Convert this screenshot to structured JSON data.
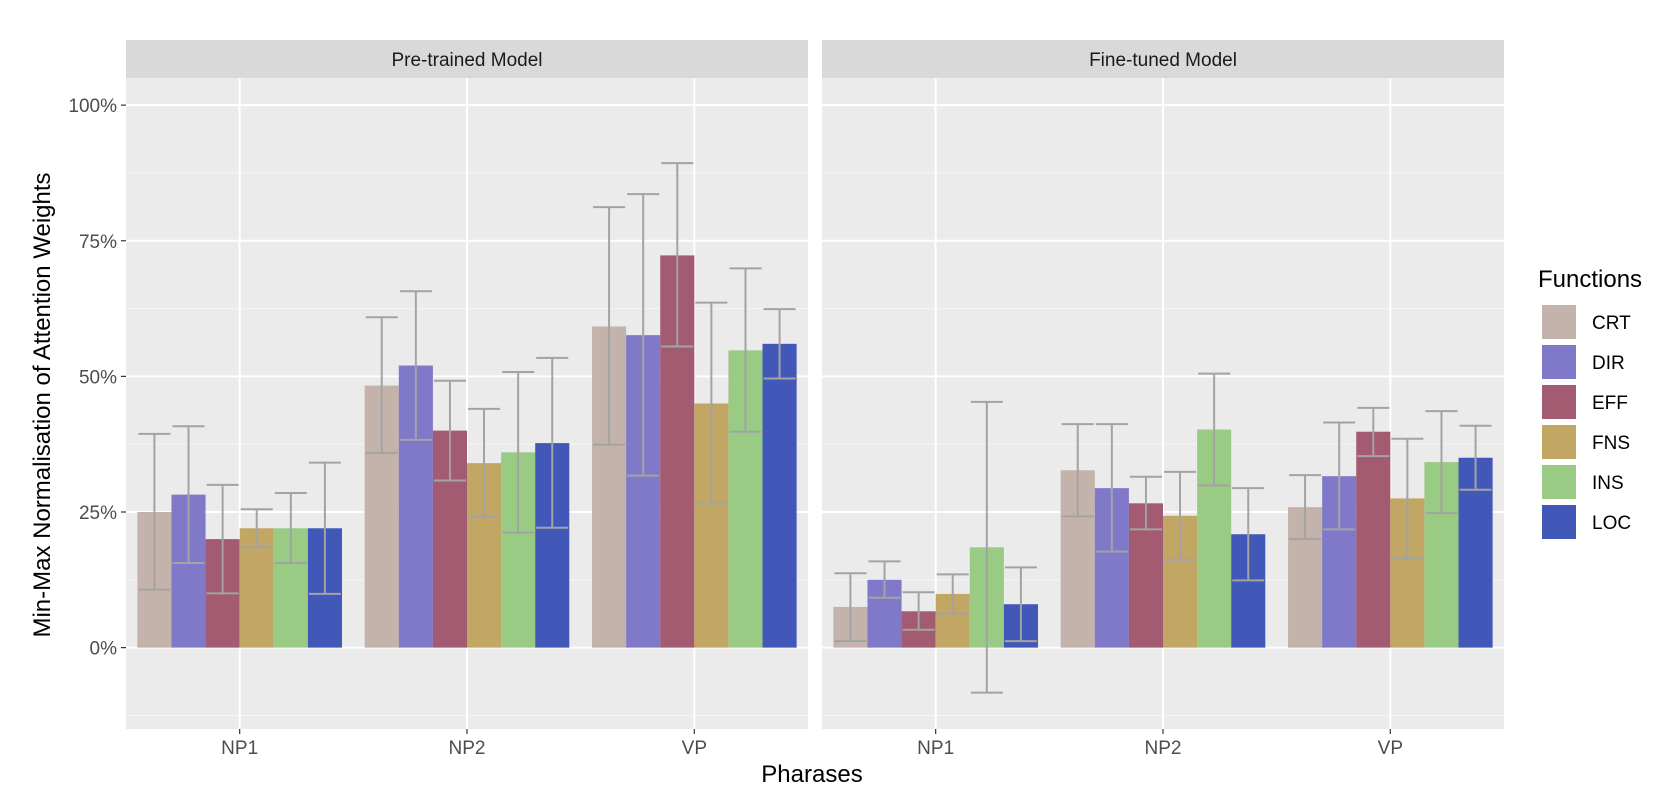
{
  "chart_data": {
    "type": "bar",
    "xlabel": "Pharases",
    "ylabel": "Min-Max Normalisation of Attention Weights",
    "y_ticks": [
      "0%",
      "25%",
      "50%",
      "75%",
      "100%"
    ],
    "ylim": [
      -15,
      105
    ],
    "grid": true,
    "legend_title": "Functions",
    "legend_position": "right",
    "categories": [
      "NP1",
      "NP2",
      "VP"
    ],
    "colors": {
      "CRT": "#c4b3aa",
      "DIR": "#8079c9",
      "EFF": "#a35b71",
      "FNS": "#c1a664",
      "INS": "#9acb85",
      "LOC": "#4158b9",
      "errorbar": "#a3a3a3",
      "panel": "#ebebeb",
      "strip": "#d9d9d9"
    },
    "panels": [
      {
        "title": "Pre-trained Model",
        "series": [
          {
            "name": "CRT",
            "values": [
              25.0,
              48.3,
              59.2
            ],
            "lower": [
              10.7,
              35.9,
              37.4
            ],
            "upper": [
              39.4,
              60.9,
              81.2
            ]
          },
          {
            "name": "DIR",
            "values": [
              28.2,
              52.0,
              57.6
            ],
            "lower": [
              15.6,
              38.3,
              31.7
            ],
            "upper": [
              40.8,
              65.7,
              83.6
            ]
          },
          {
            "name": "EFF",
            "values": [
              20.0,
              40.0,
              72.3
            ],
            "lower": [
              10.0,
              30.8,
              55.5
            ],
            "upper": [
              30.0,
              49.2,
              89.3
            ]
          },
          {
            "name": "FNS",
            "values": [
              22.0,
              34.0,
              45.0
            ],
            "lower": [
              18.5,
              24.1,
              26.5
            ],
            "upper": [
              25.5,
              44.0,
              63.6
            ]
          },
          {
            "name": "INS",
            "values": [
              22.0,
              36.0,
              54.8
            ],
            "lower": [
              15.6,
              21.2,
              39.8
            ],
            "upper": [
              28.5,
              50.8,
              69.9
            ]
          },
          {
            "name": "LOC",
            "values": [
              22.0,
              37.7,
              56.0
            ],
            "lower": [
              9.9,
              22.1,
              49.6
            ],
            "upper": [
              34.1,
              53.4,
              62.4
            ]
          }
        ]
      },
      {
        "title": "Fine-tuned Model",
        "series": [
          {
            "name": "CRT",
            "values": [
              7.5,
              32.7,
              25.9
            ],
            "lower": [
              1.2,
              24.2,
              20.0
            ],
            "upper": [
              13.7,
              41.2,
              31.8
            ]
          },
          {
            "name": "DIR",
            "values": [
              12.5,
              29.4,
              31.6
            ],
            "lower": [
              9.2,
              17.7,
              21.8
            ],
            "upper": [
              15.9,
              41.2,
              41.5
            ]
          },
          {
            "name": "EFF",
            "values": [
              6.7,
              26.6,
              39.8
            ],
            "lower": [
              3.3,
              21.8,
              35.3
            ],
            "upper": [
              10.2,
              31.5,
              44.2
            ]
          },
          {
            "name": "FNS",
            "values": [
              9.9,
              24.3,
              27.5
            ],
            "lower": [
              6.3,
              16.2,
              16.5
            ],
            "upper": [
              13.5,
              32.4,
              38.5
            ]
          },
          {
            "name": "INS",
            "values": [
              18.5,
              40.2,
              34.2
            ],
            "lower": [
              -8.3,
              29.9,
              24.8
            ],
            "upper": [
              45.3,
              50.5,
              43.6
            ]
          },
          {
            "name": "LOC",
            "values": [
              8.0,
              20.9,
              35.0
            ],
            "lower": [
              1.2,
              12.4,
              29.1
            ],
            "upper": [
              14.8,
              29.4,
              40.9
            ]
          }
        ]
      }
    ]
  }
}
